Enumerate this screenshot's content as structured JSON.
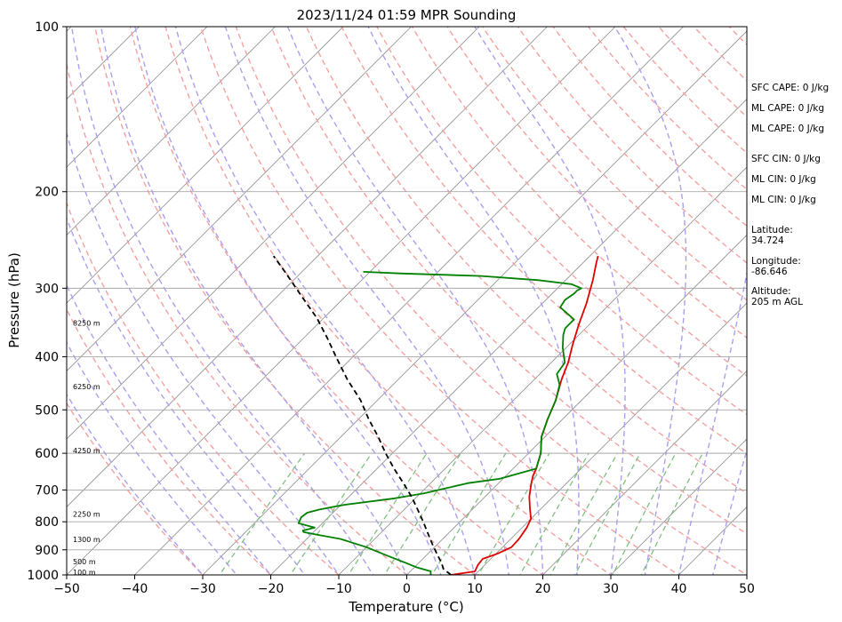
{
  "chart_data": {
    "type": "skew-t log-p sounding",
    "title": "2023/11/24 01:59 MPR Sounding",
    "xlabel": "Temperature (°C)",
    "ylabel": "Pressure (hPa)",
    "xlim": [
      -50,
      50
    ],
    "ylim": [
      1000,
      100
    ],
    "y_scale": "log",
    "grid": true,
    "x_ticks": [
      "−50",
      "−40",
      "−30",
      "−20",
      "−10",
      "0",
      "10",
      "20",
      "30",
      "40",
      "50"
    ],
    "x_tick_values": [
      -50,
      -40,
      -30,
      -20,
      -10,
      0,
      10,
      20,
      30,
      40,
      50
    ],
    "y_ticks": [
      1000,
      900,
      800,
      700,
      600,
      500,
      400,
      300,
      200,
      100
    ],
    "colors": {
      "temperature": "#e00000",
      "dewpoint": "#008000",
      "parcel": "#000000",
      "dry_adiabats": "#f5a0a0",
      "moist_adiabats": "#a8a0f0",
      "mixing_ratio": "#80c080",
      "isotherms": "#909090"
    },
    "series": [
      {
        "points": [
          [
            1000,
            6.5
          ],
          [
            985,
            9.5
          ],
          [
            960,
            9.0
          ],
          [
            935,
            8.8
          ],
          [
            915,
            10.2
          ],
          [
            890,
            11.3
          ],
          [
            860,
            11.2
          ],
          [
            820,
            10.7
          ],
          [
            790,
            10.0
          ],
          [
            760,
            8.5
          ],
          [
            720,
            6.5
          ],
          [
            680,
            4.8
          ],
          [
            660,
            4.0
          ],
          [
            640,
            3.4
          ],
          [
            600,
            1.8
          ],
          [
            560,
            -0.5
          ],
          [
            520,
            -2.2
          ],
          [
            480,
            -3.8
          ],
          [
            440,
            -6.0
          ],
          [
            410,
            -7.5
          ],
          [
            380,
            -9.5
          ],
          [
            350,
            -11.5
          ],
          [
            320,
            -13.5
          ],
          [
            290,
            -16.0
          ],
          [
            270,
            -18.0
          ],
          [
            262,
            -18.8
          ]
        ]
      },
      {
        "points": [
          [
            1000,
            3.5
          ],
          [
            985,
            3.0
          ],
          [
            970,
            0.5
          ],
          [
            950,
            -2.0
          ],
          [
            920,
            -6.0
          ],
          [
            890,
            -10.0
          ],
          [
            860,
            -15.0
          ],
          [
            845,
            -19.0
          ],
          [
            835,
            -21.5
          ],
          [
            830,
            -21.8
          ],
          [
            820,
            -20.5
          ],
          [
            805,
            -23.5
          ],
          [
            785,
            -24.0
          ],
          [
            770,
            -23.8
          ],
          [
            760,
            -22.5
          ],
          [
            745,
            -19.5
          ],
          [
            725,
            -13.0
          ],
          [
            710,
            -9.5
          ],
          [
            695,
            -7.0
          ],
          [
            680,
            -4.5
          ],
          [
            668,
            -0.5
          ],
          [
            640,
            3.4
          ],
          [
            600,
            1.8
          ],
          [
            560,
            -0.5
          ],
          [
            520,
            -2.2
          ],
          [
            480,
            -3.8
          ],
          [
            450,
            -5.5
          ],
          [
            430,
            -7.5
          ],
          [
            410,
            -8.0
          ],
          [
            385,
            -10.5
          ],
          [
            365,
            -12.3
          ],
          [
            355,
            -13.0
          ],
          [
            342,
            -13.0
          ],
          [
            325,
            -16.8
          ],
          [
            315,
            -17.2
          ],
          [
            307,
            -16.8
          ],
          [
            303,
            -16.8
          ],
          [
            300,
            -16.5
          ],
          [
            295,
            -18.5
          ],
          [
            290,
            -24.0
          ],
          [
            285,
            -33.0
          ],
          [
            282,
            -45.0
          ],
          [
            280,
            -51.0
          ]
        ]
      },
      {
        "points": [
          [
            1000,
            6.5
          ],
          [
            975,
            4.5
          ],
          [
            950,
            3.3
          ],
          [
            920,
            1.6
          ],
          [
            880,
            -0.7
          ],
          [
            840,
            -3.0
          ],
          [
            800,
            -5.4
          ],
          [
            760,
            -8.0
          ],
          [
            720,
            -10.8
          ],
          [
            680,
            -14.0
          ],
          [
            640,
            -17.5
          ],
          [
            600,
            -21.0
          ],
          [
            560,
            -24.5
          ],
          [
            520,
            -28.5
          ],
          [
            480,
            -32.5
          ],
          [
            440,
            -37.5
          ],
          [
            400,
            -42.5
          ],
          [
            370,
            -46.5
          ],
          [
            340,
            -51.0
          ],
          [
            310,
            -56.5
          ],
          [
            280,
            -62.5
          ],
          [
            262,
            -66.5
          ]
        ]
      }
    ],
    "height_labels": [
      {
        "text": "100 m",
        "p": 988
      },
      {
        "text": "500 m",
        "p": 945
      },
      {
        "text": "1300 m",
        "p": 862
      },
      {
        "text": "2250 m",
        "p": 775
      },
      {
        "text": "4250 m",
        "p": 593
      },
      {
        "text": "6250 m",
        "p": 453
      },
      {
        "text": "8250 m",
        "p": 347
      }
    ]
  },
  "stats": [
    "SFC CAPE: 0 J/kg",
    "ML CAPE: 0 J/kg",
    "ML CAPE: 0 J/kg",
    "SFC CIN: 0 J/kg",
    "ML CIN: 0 J/kg",
    "ML CIN: 0 J/kg",
    "Latitude:\n34.724",
    "Longitude:\n-86.646",
    "Altitude:\n205 m AGL"
  ]
}
